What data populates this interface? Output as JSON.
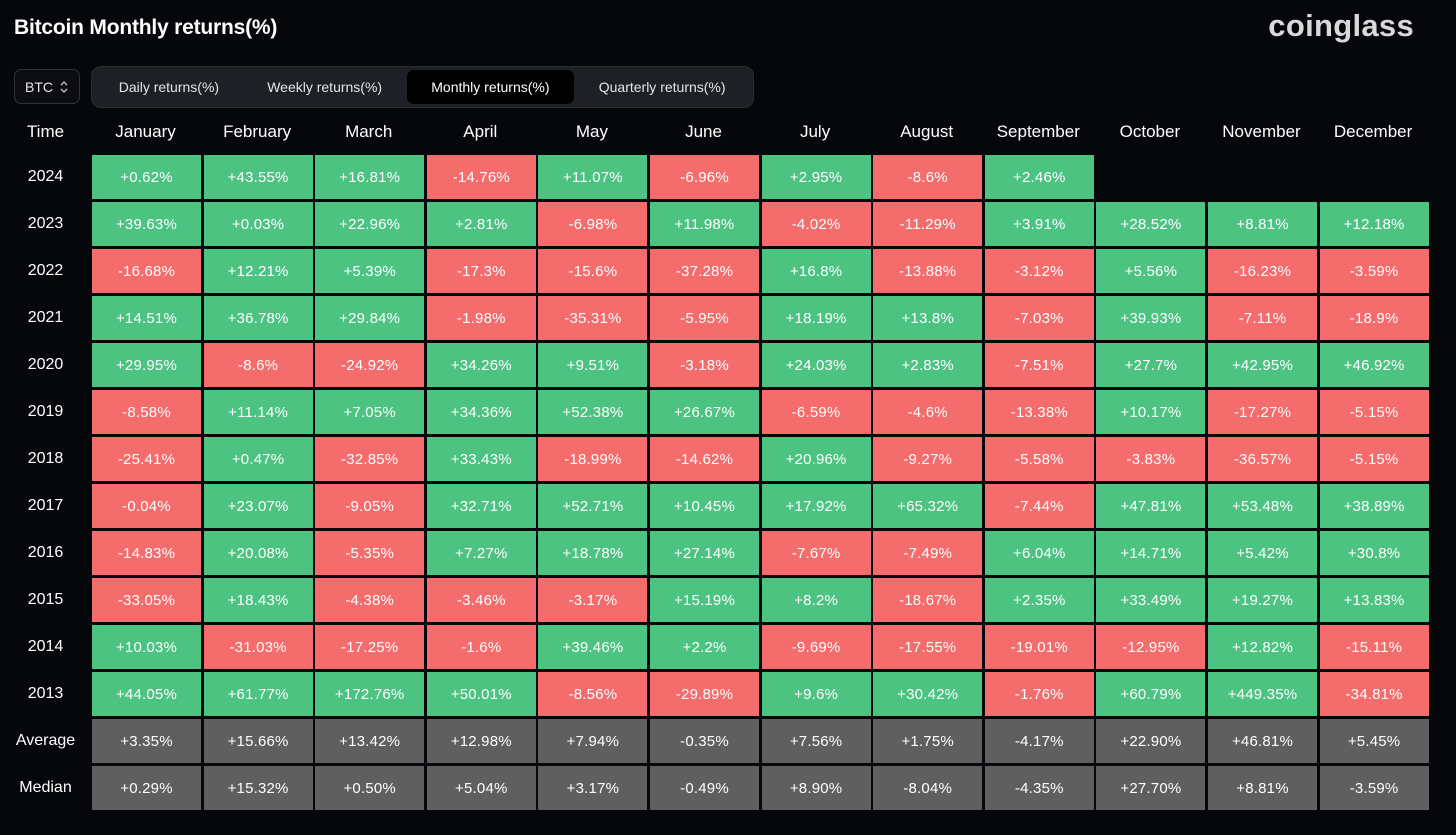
{
  "title": "Bitcoin Monthly returns(%)",
  "brand": "coinglass",
  "asset_select": {
    "value": "BTC",
    "icon": "up-down-chevron-icon"
  },
  "tabs": [
    {
      "label": "Daily returns(%)",
      "active": false
    },
    {
      "label": "Weekly returns(%)",
      "active": false
    },
    {
      "label": "Monthly returns(%)",
      "active": true
    },
    {
      "label": "Quarterly returns(%)",
      "active": false
    }
  ],
  "colors": {
    "positive": "#4dc382",
    "negative": "#f46c6c",
    "summary": "#5f5f5f",
    "background": "#05070a"
  },
  "table": {
    "time_header": "Time",
    "months": [
      "January",
      "February",
      "March",
      "April",
      "May",
      "June",
      "July",
      "August",
      "September",
      "October",
      "November",
      "December"
    ],
    "rows": [
      {
        "year": "2024",
        "values": [
          "+0.62%",
          "+43.55%",
          "+16.81%",
          "-14.76%",
          "+11.07%",
          "-6.96%",
          "+2.95%",
          "-8.6%",
          "+2.46%",
          "",
          "",
          ""
        ]
      },
      {
        "year": "2023",
        "values": [
          "+39.63%",
          "+0.03%",
          "+22.96%",
          "+2.81%",
          "-6.98%",
          "+11.98%",
          "-4.02%",
          "-11.29%",
          "+3.91%",
          "+28.52%",
          "+8.81%",
          "+12.18%"
        ]
      },
      {
        "year": "2022",
        "values": [
          "-16.68%",
          "+12.21%",
          "+5.39%",
          "-17.3%",
          "-15.6%",
          "-37.28%",
          "+16.8%",
          "-13.88%",
          "-3.12%",
          "+5.56%",
          "-16.23%",
          "-3.59%"
        ]
      },
      {
        "year": "2021",
        "values": [
          "+14.51%",
          "+36.78%",
          "+29.84%",
          "-1.98%",
          "-35.31%",
          "-5.95%",
          "+18.19%",
          "+13.8%",
          "-7.03%",
          "+39.93%",
          "-7.11%",
          "-18.9%"
        ]
      },
      {
        "year": "2020",
        "values": [
          "+29.95%",
          "-8.6%",
          "-24.92%",
          "+34.26%",
          "+9.51%",
          "-3.18%",
          "+24.03%",
          "+2.83%",
          "-7.51%",
          "+27.7%",
          "+42.95%",
          "+46.92%"
        ]
      },
      {
        "year": "2019",
        "values": [
          "-8.58%",
          "+11.14%",
          "+7.05%",
          "+34.36%",
          "+52.38%",
          "+26.67%",
          "-6.59%",
          "-4.6%",
          "-13.38%",
          "+10.17%",
          "-17.27%",
          "-5.15%"
        ]
      },
      {
        "year": "2018",
        "values": [
          "-25.41%",
          "+0.47%",
          "-32.85%",
          "+33.43%",
          "-18.99%",
          "-14.62%",
          "+20.96%",
          "-9.27%",
          "-5.58%",
          "-3.83%",
          "-36.57%",
          "-5.15%"
        ]
      },
      {
        "year": "2017",
        "values": [
          "-0.04%",
          "+23.07%",
          "-9.05%",
          "+32.71%",
          "+52.71%",
          "+10.45%",
          "+17.92%",
          "+65.32%",
          "-7.44%",
          "+47.81%",
          "+53.48%",
          "+38.89%"
        ]
      },
      {
        "year": "2016",
        "values": [
          "-14.83%",
          "+20.08%",
          "-5.35%",
          "+7.27%",
          "+18.78%",
          "+27.14%",
          "-7.67%",
          "-7.49%",
          "+6.04%",
          "+14.71%",
          "+5.42%",
          "+30.8%"
        ]
      },
      {
        "year": "2015",
        "values": [
          "-33.05%",
          "+18.43%",
          "-4.38%",
          "-3.46%",
          "-3.17%",
          "+15.19%",
          "+8.2%",
          "-18.67%",
          "+2.35%",
          "+33.49%",
          "+19.27%",
          "+13.83%"
        ]
      },
      {
        "year": "2014",
        "values": [
          "+10.03%",
          "-31.03%",
          "-17.25%",
          "-1.6%",
          "+39.46%",
          "+2.2%",
          "-9.69%",
          "-17.55%",
          "-19.01%",
          "-12.95%",
          "+12.82%",
          "-15.11%"
        ]
      },
      {
        "year": "2013",
        "values": [
          "+44.05%",
          "+61.77%",
          "+172.76%",
          "+50.01%",
          "-8.56%",
          "-29.89%",
          "+9.6%",
          "+30.42%",
          "-1.76%",
          "+60.79%",
          "+449.35%",
          "-34.81%"
        ]
      }
    ],
    "summary": [
      {
        "label": "Average",
        "values": [
          "+3.35%",
          "+15.66%",
          "+13.42%",
          "+12.98%",
          "+7.94%",
          "-0.35%",
          "+7.56%",
          "+1.75%",
          "-4.17%",
          "+22.90%",
          "+46.81%",
          "+5.45%"
        ]
      },
      {
        "label": "Median",
        "values": [
          "+0.29%",
          "+15.32%",
          "+0.50%",
          "+5.04%",
          "+3.17%",
          "-0.49%",
          "+8.90%",
          "-8.04%",
          "-4.35%",
          "+27.70%",
          "+8.81%",
          "-3.59%"
        ]
      }
    ]
  }
}
